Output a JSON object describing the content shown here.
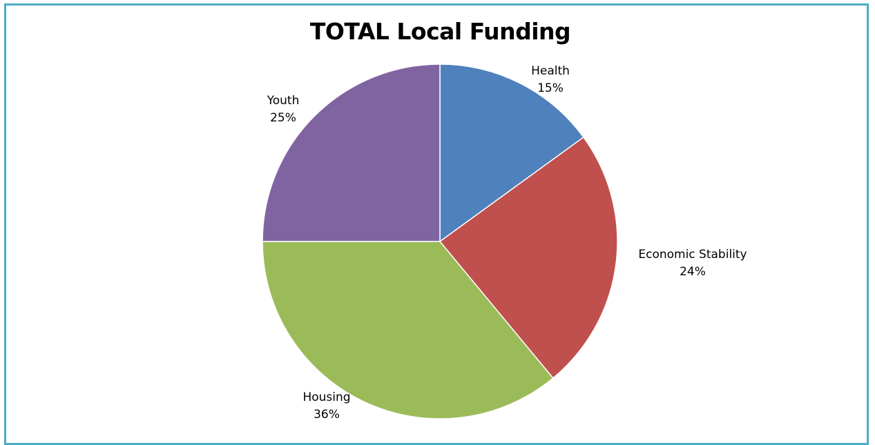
{
  "chart_data": {
    "type": "pie",
    "title": "TOTAL Local Funding",
    "slices": [
      {
        "name": "Health",
        "label": "Health",
        "value": 15,
        "percent_label": "15%",
        "color": "#4f81bd"
      },
      {
        "name": "Economic Stability",
        "label": "Economic Stability",
        "value": 24,
        "percent_label": "24%",
        "color": "#c0504d"
      },
      {
        "name": "Housing",
        "label": "Housing",
        "value": 36,
        "percent_label": "36%",
        "color": "#9bbb59"
      },
      {
        "name": "Youth",
        "label": "Youth",
        "value": 25,
        "percent_label": "25%",
        "color": "#8064a2"
      }
    ],
    "start_angle_deg": 0,
    "direction": "clockwise",
    "legend": "none"
  },
  "frame": {
    "border_color": "#4bacc6"
  }
}
